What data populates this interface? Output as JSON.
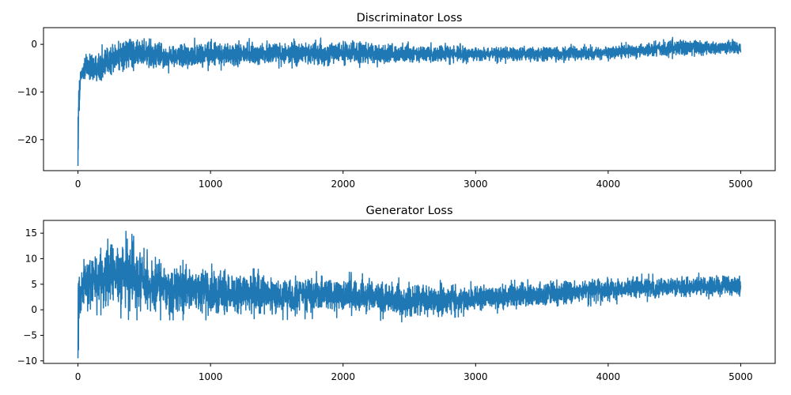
{
  "chart_data": [
    {
      "type": "line",
      "title": "Discriminator Loss",
      "xlabel": "",
      "ylabel": "",
      "xlim": [
        -260,
        5260
      ],
      "ylim": [
        -26.5,
        3.5
      ],
      "xticks": [
        0,
        1000,
        2000,
        3000,
        4000,
        5000
      ],
      "yticks": [
        0,
        -10,
        -20
      ],
      "xtick_labels": [
        "0",
        "1000",
        "2000",
        "3000",
        "4000",
        "5000"
      ],
      "ytick_labels": [
        "0",
        "−10",
        "−20"
      ],
      "grid": false,
      "legend": "none",
      "color": "#1f77b4",
      "x_range": [
        0,
        5000
      ],
      "envelope": [
        {
          "x": 0,
          "lo": -25.5,
          "hi": -8
        },
        {
          "x": 20,
          "lo": -8.5,
          "hi": -5
        },
        {
          "x": 50,
          "lo": -8,
          "hi": -2
        },
        {
          "x": 100,
          "lo": -9,
          "hi": -0.5
        },
        {
          "x": 200,
          "lo": -8.5,
          "hi": 0
        },
        {
          "x": 300,
          "lo": -7,
          "hi": 2
        },
        {
          "x": 400,
          "lo": -6.5,
          "hi": 2.5
        },
        {
          "x": 500,
          "lo": -6,
          "hi": 2
        },
        {
          "x": 700,
          "lo": -6,
          "hi": 1
        },
        {
          "x": 1000,
          "lo": -5.5,
          "hi": 1.5
        },
        {
          "x": 1500,
          "lo": -5,
          "hi": 1
        },
        {
          "x": 2000,
          "lo": -5,
          "hi": 1.5
        },
        {
          "x": 2500,
          "lo": -4.5,
          "hi": 0.5
        },
        {
          "x": 3000,
          "lo": -4,
          "hi": 0
        },
        {
          "x": 3500,
          "lo": -4,
          "hi": 0
        },
        {
          "x": 4000,
          "lo": -3.5,
          "hi": 0
        },
        {
          "x": 4500,
          "lo": -3,
          "hi": 1.5
        },
        {
          "x": 5000,
          "lo": -2.5,
          "hi": 1
        }
      ]
    },
    {
      "type": "line",
      "title": "Generator Loss",
      "xlabel": "",
      "ylabel": "",
      "xlim": [
        -260,
        5260
      ],
      "ylim": [
        -10.5,
        17.5
      ],
      "xticks": [
        0,
        1000,
        2000,
        3000,
        4000,
        5000
      ],
      "yticks": [
        15,
        10,
        5,
        0,
        -5,
        -10
      ],
      "xtick_labels": [
        "0",
        "1000",
        "2000",
        "3000",
        "4000",
        "5000"
      ],
      "ytick_labels": [
        "15",
        "10",
        "5",
        "0",
        "−5",
        "−10"
      ],
      "grid": false,
      "legend": "none",
      "color": "#1f77b4",
      "x_range": [
        0,
        5000
      ],
      "envelope": [
        {
          "x": 0,
          "lo": -9.5,
          "hi": 12.5
        },
        {
          "x": 20,
          "lo": -5.5,
          "hi": 9
        },
        {
          "x": 50,
          "lo": -2,
          "hi": 11
        },
        {
          "x": 100,
          "lo": -1,
          "hi": 12
        },
        {
          "x": 200,
          "lo": -1,
          "hi": 14.5
        },
        {
          "x": 300,
          "lo": -1.5,
          "hi": 16
        },
        {
          "x": 400,
          "lo": -2,
          "hi": 15
        },
        {
          "x": 500,
          "lo": -2,
          "hi": 12
        },
        {
          "x": 700,
          "lo": -2,
          "hi": 10
        },
        {
          "x": 1000,
          "lo": -2,
          "hi": 9
        },
        {
          "x": 1500,
          "lo": -2,
          "hi": 7.5
        },
        {
          "x": 2000,
          "lo": -1.5,
          "hi": 7.5
        },
        {
          "x": 2500,
          "lo": -2.5,
          "hi": 6
        },
        {
          "x": 3000,
          "lo": -1,
          "hi": 5.5
        },
        {
          "x": 3500,
          "lo": 0,
          "hi": 6
        },
        {
          "x": 4000,
          "lo": 1,
          "hi": 7
        },
        {
          "x": 4500,
          "lo": 2,
          "hi": 7
        },
        {
          "x": 5000,
          "lo": 2,
          "hi": 7.5
        }
      ]
    }
  ]
}
